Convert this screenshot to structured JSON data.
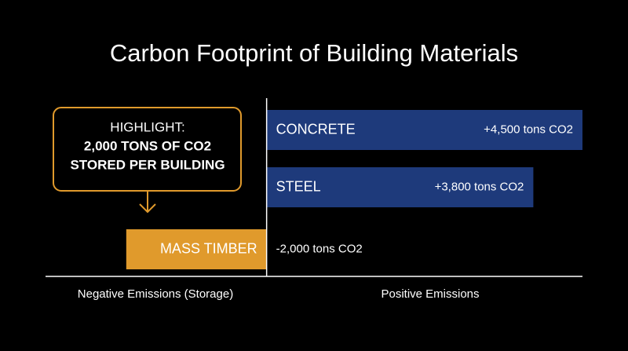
{
  "chart_data": {
    "type": "bar",
    "orientation": "horizontal",
    "title": "Carbon Footprint of Building Materials",
    "categories": [
      "CONCRETE",
      "STEEL",
      "MASS TIMBER"
    ],
    "values": [
      4500,
      3800,
      -2000
    ],
    "value_labels": [
      "+4,500 tons CO2",
      "+3,800 tons CO2",
      "-2,000 tons CO2"
    ],
    "colors": [
      "#1e3a7b",
      "#1e3a7b",
      "#e09a2c"
    ],
    "xlim": [
      -3150,
      4500
    ],
    "negative_label": "Negative Emissions (Storage)",
    "positive_label": "Positive Emissions",
    "annotation": [
      "HIGHLIGHT:",
      "2,000 TONS OF CO2",
      "STORED PER BUILDING"
    ]
  }
}
